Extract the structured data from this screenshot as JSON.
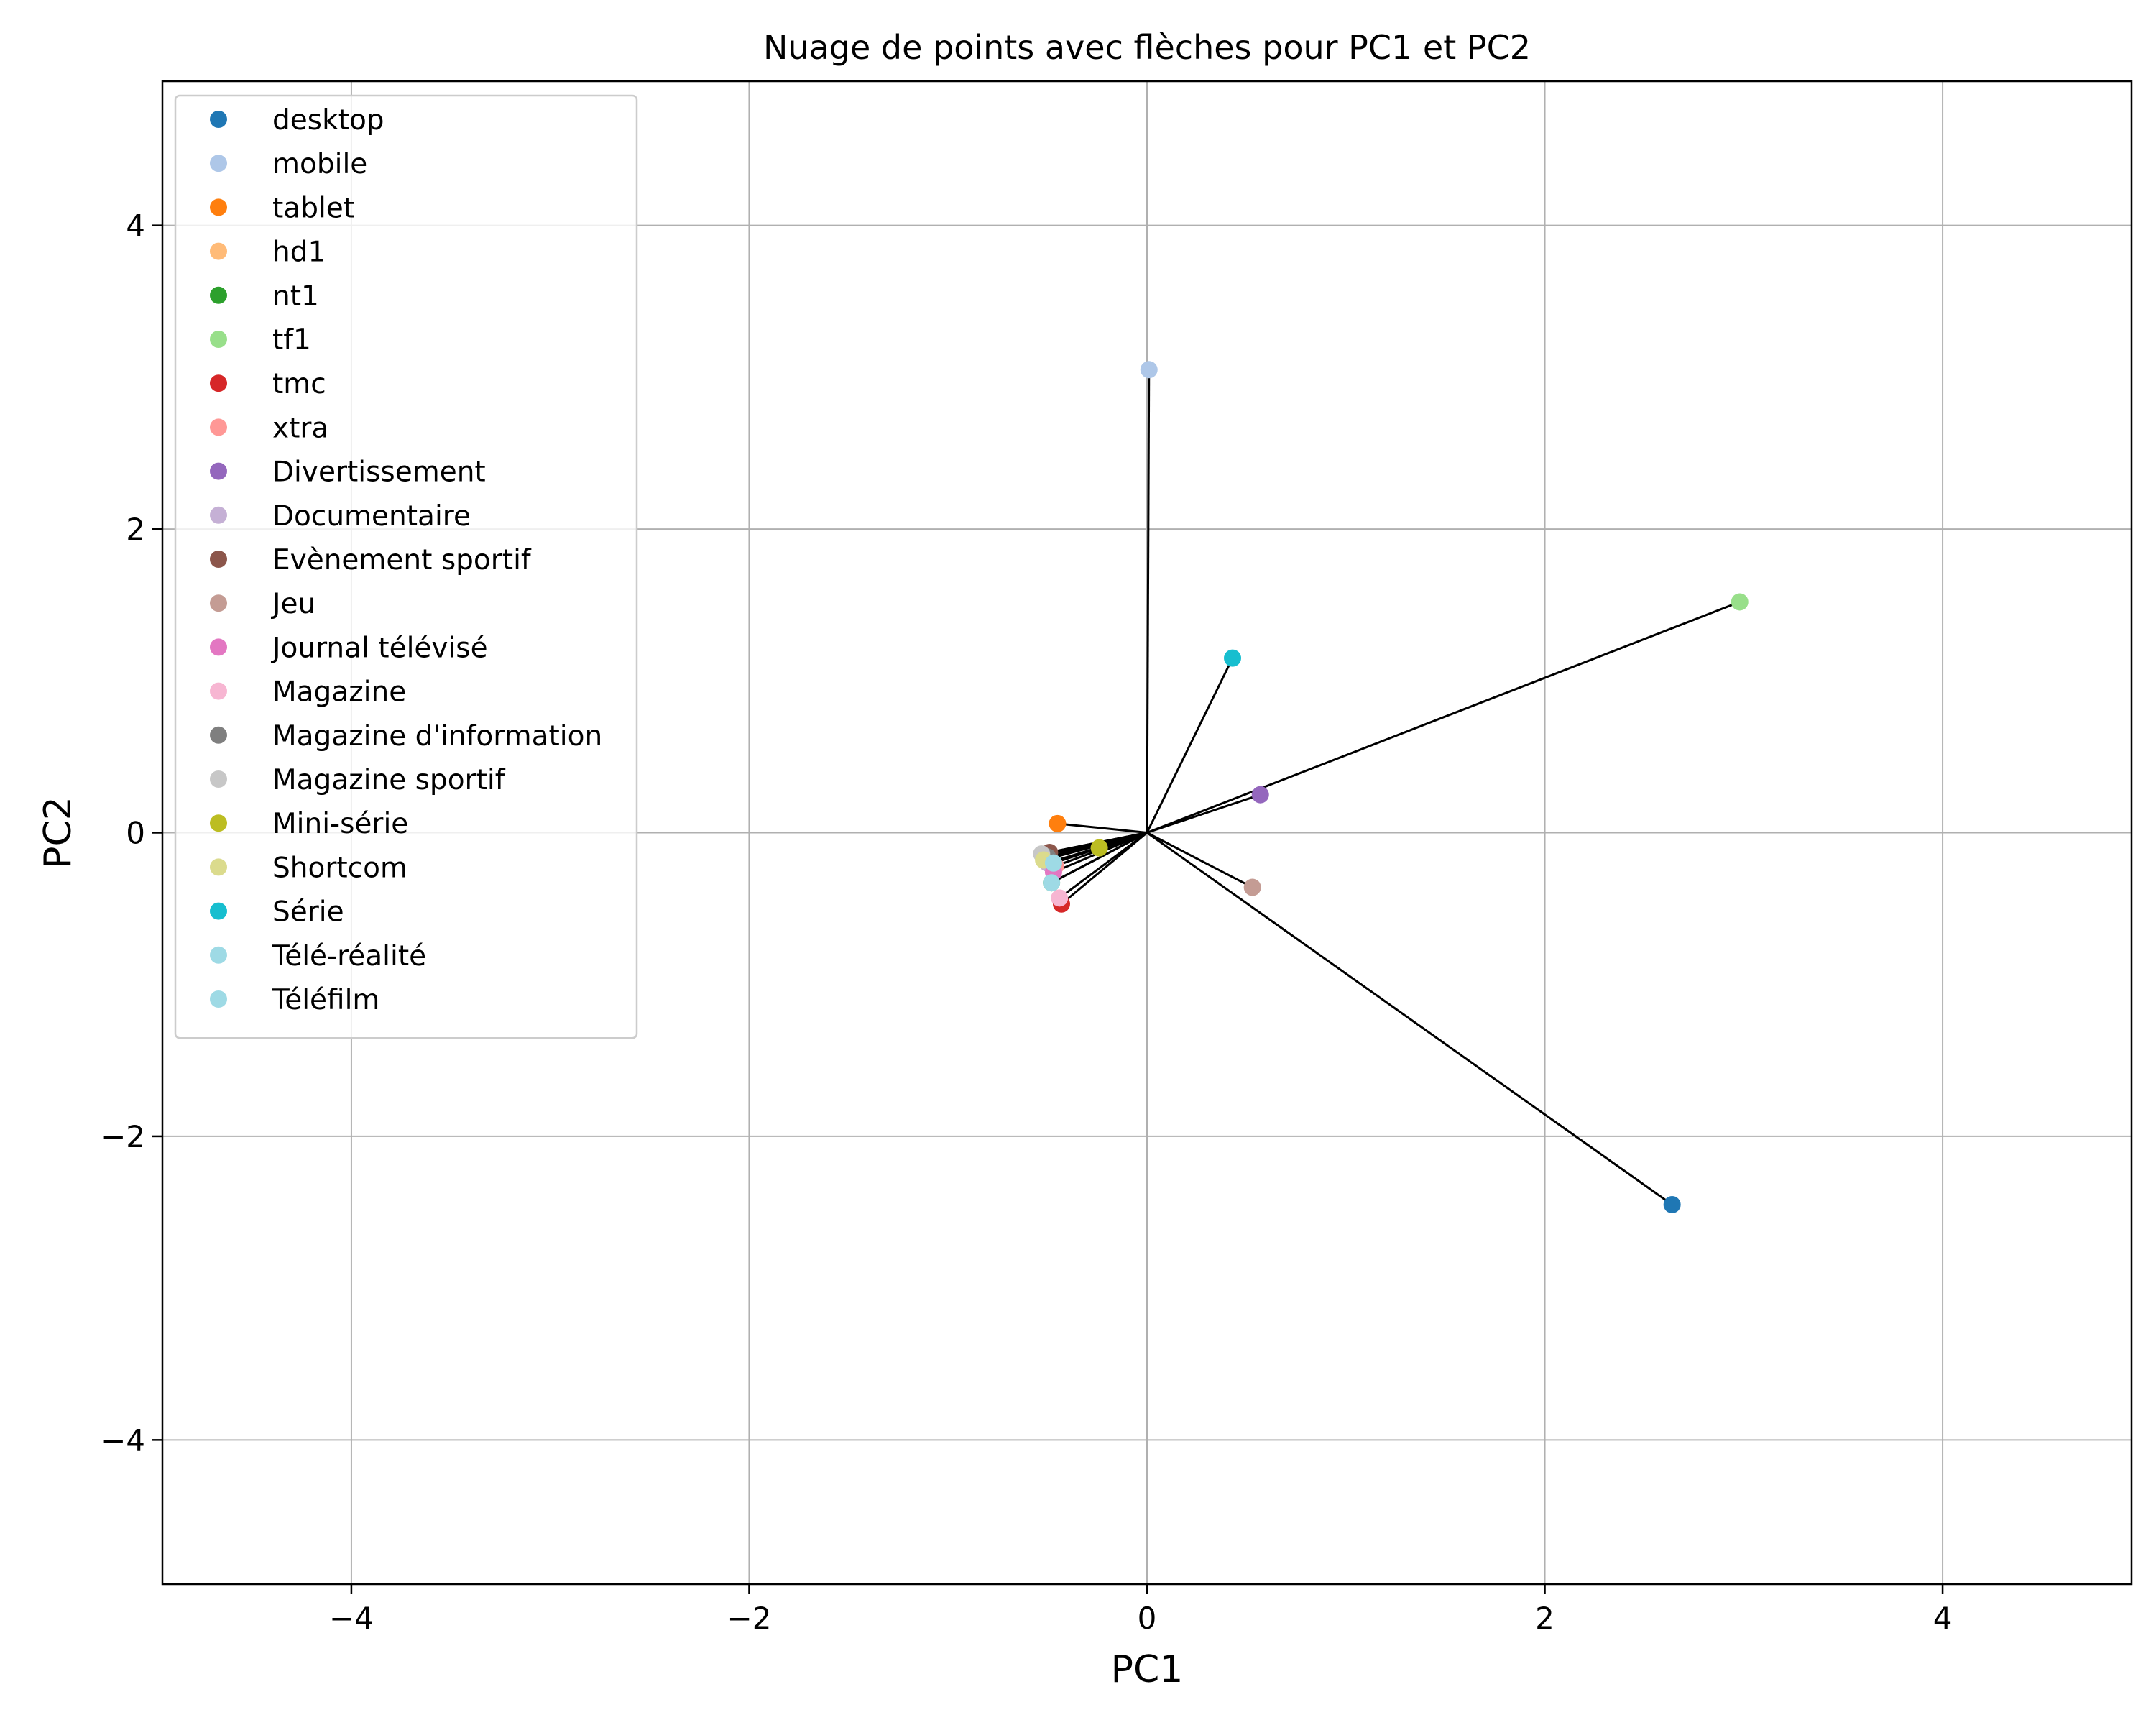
{
  "chart_data": {
    "type": "scatter",
    "title": "Nuage de points avec flèches pour PC1 et PC2",
    "xlabel": "PC1",
    "ylabel": "PC2",
    "xlim": [
      -4.95,
      4.95
    ],
    "ylim": [
      -4.95,
      4.95
    ],
    "xticks": [
      -4,
      -2,
      0,
      2,
      4
    ],
    "yticks": [
      -4,
      -2,
      0,
      2,
      4
    ],
    "xtick_labels": [
      "−4",
      "−2",
      "0",
      "2",
      "4"
    ],
    "ytick_labels": [
      "−4",
      "−2",
      "0",
      "2",
      "4"
    ],
    "grid": true,
    "legend_position": "upper-left",
    "arrows_from_origin": true,
    "origin": [
      0,
      0
    ],
    "points": [
      {
        "name": "desktop",
        "x": 2.64,
        "y": -2.45,
        "color": "#1f77b4"
      },
      {
        "name": "mobile",
        "x": 0.01,
        "y": 3.05,
        "color": "#aec7e8"
      },
      {
        "name": "tablet",
        "x": -0.45,
        "y": 0.06,
        "color": "#ff7f0e"
      },
      {
        "name": "hd1",
        "x": -0.52,
        "y": -0.15,
        "color": "#ffbb78"
      },
      {
        "name": "nt1",
        "x": -0.48,
        "y": -0.33,
        "color": "#2ca02c"
      },
      {
        "name": "tf1",
        "x": 2.98,
        "y": 1.52,
        "color": "#98df8a"
      },
      {
        "name": "tmc",
        "x": -0.43,
        "y": -0.47,
        "color": "#d62728"
      },
      {
        "name": "xtra",
        "x": -0.46,
        "y": -0.22,
        "color": "#ff9896"
      },
      {
        "name": "Divertissement",
        "x": 0.57,
        "y": 0.25,
        "color": "#9467bd"
      },
      {
        "name": "Documentaire",
        "x": -0.5,
        "y": -0.2,
        "color": "#c5b0d5"
      },
      {
        "name": "Evènement sportif",
        "x": -0.49,
        "y": -0.13,
        "color": "#8c564b"
      },
      {
        "name": "Jeu",
        "x": 0.53,
        "y": -0.36,
        "color": "#c49c94"
      },
      {
        "name": "Journal télévisé",
        "x": -0.47,
        "y": -0.26,
        "color": "#e377c2"
      },
      {
        "name": "Magazine",
        "x": -0.44,
        "y": -0.43,
        "color": "#f7b6d2"
      },
      {
        "name": "Magazine d'information",
        "x": -0.5,
        "y": -0.16,
        "color": "#7f7f7f"
      },
      {
        "name": "Magazine sportif",
        "x": -0.53,
        "y": -0.14,
        "color": "#c7c7c7"
      },
      {
        "name": "Mini-série",
        "x": -0.24,
        "y": -0.1,
        "color": "#bcbd22"
      },
      {
        "name": "Shortcom",
        "x": -0.52,
        "y": -0.18,
        "color": "#dbdb8d"
      },
      {
        "name": "Série",
        "x": 0.43,
        "y": 1.15,
        "color": "#17becf"
      },
      {
        "name": "Télé-réalité",
        "x": -0.47,
        "y": -0.2,
        "color": "#9edae5"
      },
      {
        "name": "Téléfilm",
        "x": -0.48,
        "y": -0.33,
        "color": "#9edae5"
      }
    ]
  }
}
